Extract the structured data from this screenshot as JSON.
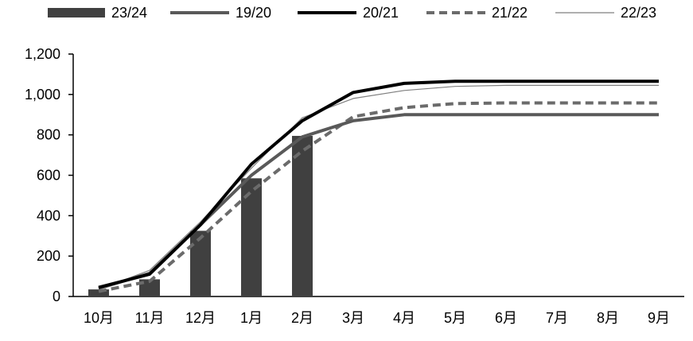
{
  "chart_data": {
    "type": "bar",
    "categories": [
      "10月",
      "11月",
      "12月",
      "1月",
      "2月",
      "3月",
      "4月",
      "5月",
      "6月",
      "7月",
      "8月",
      "9月"
    ],
    "ylim": [
      0,
      1200
    ],
    "yticks": [
      0,
      200,
      400,
      600,
      800,
      1000,
      1200
    ],
    "ytick_labels": [
      "0",
      "200",
      "400",
      "600",
      "800",
      "1,000",
      "1,200"
    ],
    "grid": false,
    "legend_position": "top",
    "series": [
      {
        "name": "23/24",
        "type": "bar",
        "color": "#404040",
        "values": [
          35,
          85,
          325,
          585,
          795,
          null,
          null,
          null,
          null,
          null,
          null,
          null
        ]
      },
      {
        "name": "19/20",
        "type": "line",
        "color": "#595959",
        "style": "solid-thick",
        "values": [
          40,
          115,
          355,
          600,
          790,
          870,
          900,
          900,
          900,
          900,
          900,
          900
        ]
      },
      {
        "name": "20/21",
        "type": "line",
        "color": "#000000",
        "style": "solid-thick",
        "values": [
          45,
          110,
          355,
          655,
          870,
          1010,
          1055,
          1065,
          1065,
          1065,
          1065,
          1065
        ]
      },
      {
        "name": "21/22",
        "type": "line",
        "color": "#6b6b6b",
        "style": "dashed",
        "values": [
          25,
          75,
          290,
          520,
          720,
          890,
          935,
          955,
          958,
          958,
          958,
          958
        ]
      },
      {
        "name": "22/23",
        "type": "line",
        "color": "#7f7f7f",
        "style": "solid-thin",
        "values": [
          35,
          130,
          370,
          635,
          885,
          980,
          1020,
          1040,
          1045,
          1045,
          1045,
          1045
        ]
      }
    ]
  }
}
